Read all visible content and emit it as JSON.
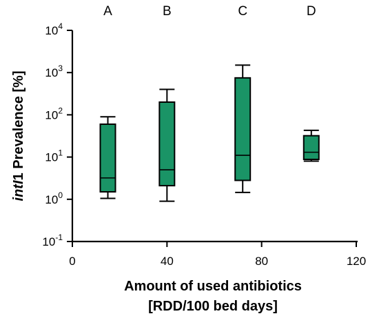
{
  "chart_data": {
    "type": "box",
    "title": "",
    "xlabel_lines": [
      "Amount of used antibiotics",
      "[RDD/100 bed days]"
    ],
    "ylabel_parts": [
      {
        "text": "intI",
        "italic": true
      },
      {
        "text": "1 Prevalence [%]",
        "italic": false
      }
    ],
    "x_scale": "linear",
    "y_scale": "log10",
    "xlim": [
      0,
      120
    ],
    "ylim_exponents": [
      -1,
      4
    ],
    "x_ticks": [
      0,
      40,
      80,
      120
    ],
    "y_ticks": [
      {
        "base": "10",
        "exp": "4"
      },
      {
        "base": "10",
        "exp": "3"
      },
      {
        "base": "10",
        "exp": "2"
      },
      {
        "base": "10",
        "exp": "1"
      },
      {
        "base": "10",
        "exp": "0"
      },
      {
        "base": "10",
        "exp": "-1"
      }
    ],
    "y_tick_values": [
      10000,
      1000,
      100,
      10,
      1,
      0.1
    ],
    "grid": false,
    "box_color": "#1a9466",
    "groups": [
      {
        "label": "A",
        "x": 15,
        "min": 1.05,
        "q1": 1.5,
        "median": 3.2,
        "q3": 60,
        "max": 90
      },
      {
        "label": "B",
        "x": 40,
        "min": 0.9,
        "q1": 2.1,
        "median": 5,
        "q3": 200,
        "max": 400
      },
      {
        "label": "C",
        "x": 72,
        "min": 1.45,
        "q1": 2.8,
        "median": 11,
        "q3": 750,
        "max": 1500
      },
      {
        "label": "D",
        "x": 101,
        "min": 8,
        "q1": 8.8,
        "median": 13,
        "q3": 32,
        "max": 43
      }
    ]
  }
}
